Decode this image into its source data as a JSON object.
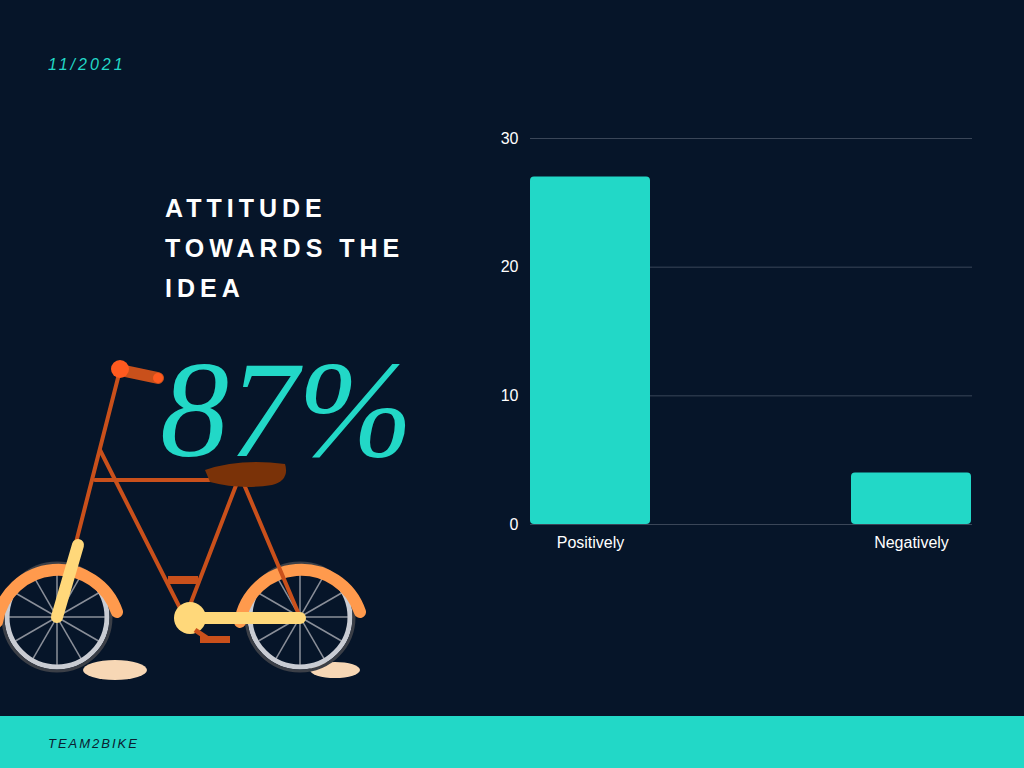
{
  "chart_data": {
    "type": "bar",
    "title": "ATTITUDE TOWARDS THE IDEA",
    "date": "11/2021",
    "annotation": "87%",
    "footer": "TEAM2BIKE",
    "categories": [
      "Positively",
      "Negatively"
    ],
    "values": [
      27,
      4
    ],
    "color": "#22d8c7",
    "ylim": [
      0,
      30
    ],
    "yticks": [
      0,
      10,
      20,
      30
    ],
    "grid": true
  }
}
